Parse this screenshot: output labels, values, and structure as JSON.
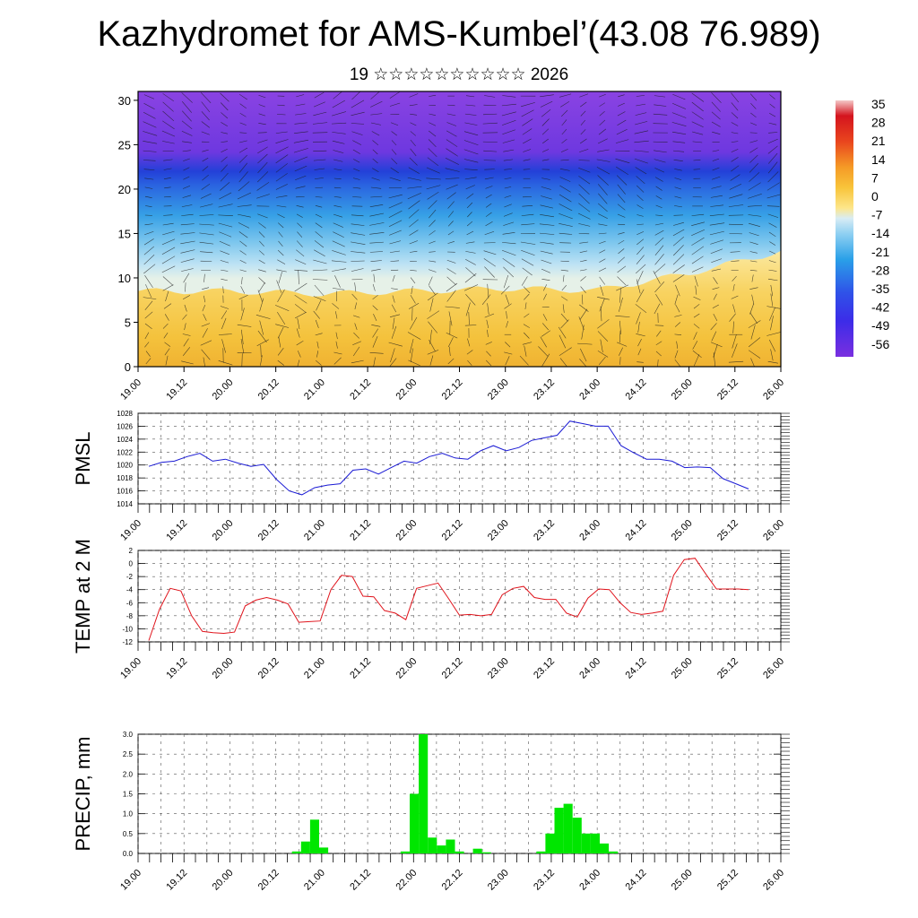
{
  "header": {
    "title": "Kazhydromet for AMS-Kumbel’(43.08 76.989)",
    "subtitle": "19 ☆☆☆☆☆☆☆☆☆☆ 2026"
  },
  "chart_data": [
    {
      "type": "heatmap",
      "name": "vertical-section",
      "x_tick_labels": [
        "19.00",
        "19.12",
        "20.00",
        "20.12",
        "21.00",
        "21.12",
        "22.00",
        "22.12",
        "23.00",
        "23.12",
        "24.00",
        "24.12",
        "25.00",
        "25.12",
        "26.00"
      ],
      "y_ticks": [
        0,
        5,
        10,
        15,
        20,
        25,
        30
      ],
      "ylim": [
        0,
        31
      ],
      "legend_labels": [
        "35",
        "28",
        "21",
        "14",
        "7",
        "0",
        "-7",
        "-14",
        "-21",
        "-28",
        "-35",
        "-42",
        "-49",
        "-56"
      ],
      "colors": {
        "warm_surface": "#f4c23c",
        "pale_yellow": "#fbe58e",
        "light_blue": "#a8d8f2",
        "mid_blue": "#3aa6e6",
        "deep_blue": "#1f3ad8",
        "purple": "#7a3ae0",
        "arrow": "#1a1a1a"
      },
      "boundary_heights": {
        "x": [
          0,
          2,
          4,
          6,
          8,
          10,
          12,
          14
        ],
        "warm_top": [
          8.5,
          8.5,
          8.2,
          8.5,
          8.8,
          8.6,
          10.5,
          13
        ],
        "cold_layer": [
          21.5,
          21.5,
          21.5,
          22,
          22,
          22,
          22,
          22
        ]
      }
    },
    {
      "type": "line",
      "name": "pmsl",
      "ylabel": "PMSL",
      "ylim": [
        1014,
        1028
      ],
      "y_ticks": [
        1014,
        1016,
        1018,
        1020,
        1022,
        1024,
        1026,
        1028
      ],
      "x_tick_labels": [
        "19.00",
        "19.12",
        "20.00",
        "20.12",
        "21.00",
        "21.12",
        "22.00",
        "22.12",
        "23.00",
        "23.12",
        "24.00",
        "24.12",
        "25.00",
        "25.12",
        "26.00"
      ],
      "color": "#1a1ad4",
      "values": [
        1019.8,
        1020.4,
        1020.6,
        1021.3,
        1021.8,
        1020.6,
        1020.9,
        1020.3,
        1019.8,
        1020.1,
        1017.8,
        1016.0,
        1015.4,
        1016.5,
        1016.9,
        1017.1,
        1019.2,
        1019.4,
        1018.6,
        1019.6,
        1020.6,
        1020.3,
        1021.3,
        1021.8,
        1021.1,
        1020.9,
        1022.2,
        1023.0,
        1022.2,
        1022.7,
        1023.8,
        1024.2,
        1024.6,
        1026.8,
        1026.4,
        1026.0,
        1026.0,
        1023.0,
        1021.9,
        1020.9,
        1020.9,
        1020.6,
        1019.6,
        1019.7,
        1019.6,
        1017.9,
        1017.1,
        1016.3
      ]
    },
    {
      "type": "line",
      "name": "temp2m",
      "ylabel": "TEMP at 2 M",
      "ylim": [
        -12,
        2
      ],
      "y_ticks": [
        -12,
        -10,
        -8,
        -6,
        -4,
        -2,
        0,
        2
      ],
      "x_tick_labels": [
        "19.00",
        "19.12",
        "20.00",
        "20.12",
        "21.00",
        "21.12",
        "22.00",
        "22.12",
        "23.00",
        "23.12",
        "24.00",
        "24.12",
        "25.00",
        "25.12",
        "26.00"
      ],
      "color": "#e0141c",
      "values": [
        -11.8,
        -7.0,
        -3.8,
        -4.2,
        -8.0,
        -10.4,
        -10.6,
        -10.7,
        -10.5,
        -6.5,
        -5.6,
        -5.2,
        -5.6,
        -6.2,
        -9.0,
        -8.9,
        -8.8,
        -4.0,
        -1.8,
        -2.0,
        -5.0,
        -5.1,
        -7.2,
        -7.6,
        -8.6,
        -3.8,
        -3.4,
        -3.0,
        -5.4,
        -7.9,
        -7.8,
        -8.0,
        -7.8,
        -4.8,
        -3.8,
        -3.5,
        -5.2,
        -5.5,
        -5.5,
        -7.6,
        -8.2,
        -5.3,
        -3.9,
        -4.0,
        -6.0,
        -7.5,
        -7.8,
        -7.6,
        -7.3,
        -1.8,
        0.6,
        0.8,
        -1.6,
        -3.9,
        -3.9,
        -3.9,
        -4.0
      ]
    },
    {
      "type": "bar",
      "name": "precip",
      "ylabel": "PRECIP, mm",
      "ylim": [
        0,
        3
      ],
      "y_ticks": [
        "0.0",
        "0.5",
        "1.0",
        "1.5",
        "2.0",
        "2.5",
        "3.0"
      ],
      "x_tick_labels": [
        "19.00",
        "19.12",
        "20.00",
        "20.12",
        "21.00",
        "21.12",
        "22.00",
        "22.12",
        "23.00",
        "23.12",
        "24.00",
        "24.12",
        "25.00",
        "25.12",
        "26.00"
      ],
      "color": "#00e600",
      "values": [
        0,
        0,
        0,
        0,
        0,
        0,
        0,
        0,
        0,
        0,
        0,
        0,
        0,
        0,
        0,
        0,
        0,
        0.05,
        0.3,
        0.85,
        0.15,
        0,
        0,
        0,
        0,
        0,
        0,
        0,
        0,
        0.05,
        1.5,
        3.0,
        0.4,
        0.2,
        0.35,
        0.05,
        0,
        0.12,
        0.03,
        0,
        0,
        0,
        0,
        0,
        0.05,
        0.5,
        1.15,
        1.25,
        0.9,
        0.5,
        0.5,
        0.25,
        0.05,
        0,
        0,
        0,
        0,
        0,
        0,
        0,
        0,
        0,
        0,
        0,
        0,
        0,
        0,
        0,
        0,
        0,
        0
      ]
    }
  ]
}
